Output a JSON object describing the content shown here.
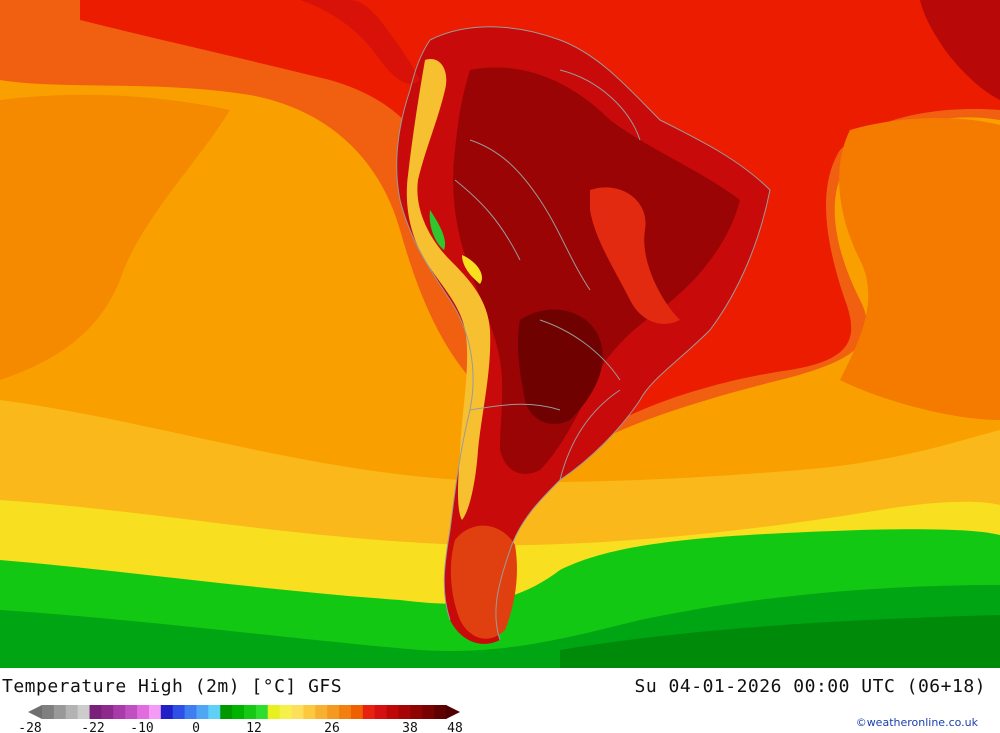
{
  "title": {
    "left": "Temperature High (2m) [°C] GFS",
    "right": "Su 04-01-2026 00:00 UTC (06+18)"
  },
  "legend": {
    "ticks": [
      "-28",
      "-22",
      "-10",
      "0",
      "12",
      "26",
      "38",
      "48"
    ],
    "swatches": [
      "#7f7f7f",
      "#999999",
      "#b3b3b3",
      "#cccccc",
      "#7a1f7a",
      "#8e2a8e",
      "#a93aa9",
      "#c24fc2",
      "#e06ce0",
      "#f59af5",
      "#2020c8",
      "#2f50e6",
      "#3f7ef0",
      "#4fa6f5",
      "#5fd0f7",
      "#009a00",
      "#00b300",
      "#14c814",
      "#2ede2e",
      "#e8f020",
      "#f5f04a",
      "#fde05a",
      "#fbc83e",
      "#f8b030",
      "#f59a20",
      "#f28010",
      "#ee6000",
      "#e82010",
      "#d41010",
      "#be0808",
      "#a60505",
      "#900303",
      "#780202",
      "#600101"
    ]
  },
  "credit": "©weatheronline.co.uk",
  "colors": {
    "ocean_warm": "#fa9a00",
    "ocean_hot": "#f05000",
    "tropic_sea": "#ee1a00",
    "land_hot": "#c00808",
    "land_core": "#8a0303",
    "cool_yellow": "#f8e020",
    "cold_green": "#13c813",
    "cold_dark_green": "#008a0a",
    "border": "#9a9a9a"
  }
}
